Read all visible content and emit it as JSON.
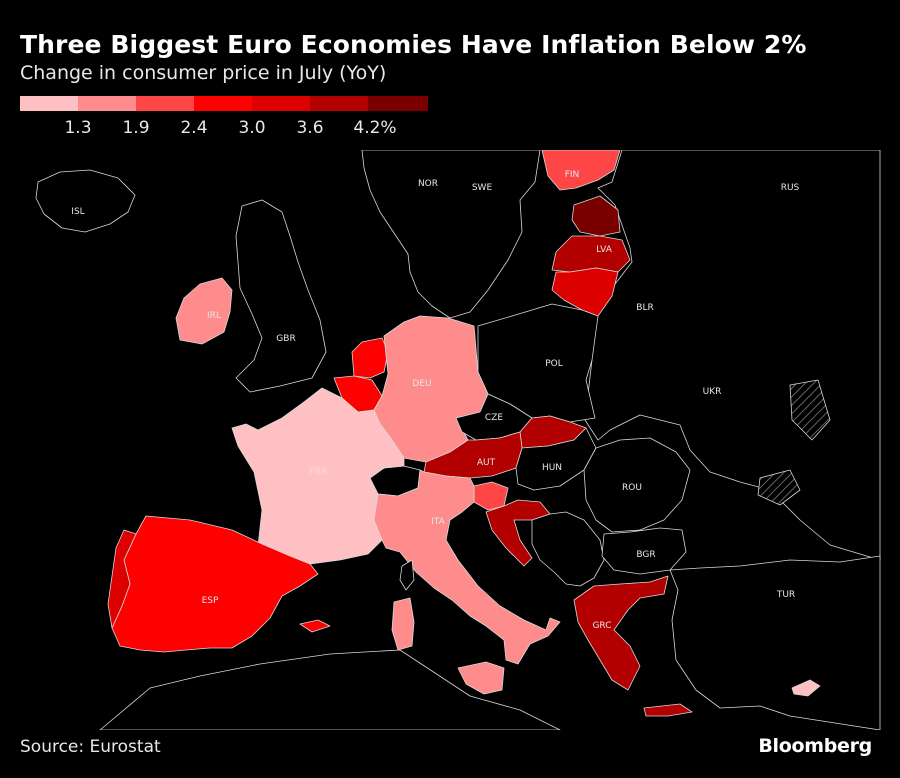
{
  "title": "Three Biggest Euro Economies Have Inflation Below 2%",
  "subtitle": "Change in consumer price in July (YoY)",
  "legend": {
    "colors": [
      "#ffc0c4",
      "#ff8c8c",
      "#ff4646",
      "#ff0000",
      "#dd0000",
      "#b20000",
      "#7a0000"
    ],
    "ticks": [
      "1.3",
      "1.9",
      "2.4",
      "3.0",
      "3.6",
      "4.2%"
    ]
  },
  "countries": {
    "isl": "ISL",
    "nor": "NOR",
    "swe": "SWE",
    "fin": "FIN",
    "rus": "RUS",
    "lva": "LVA",
    "irl": "IRL",
    "gbr": "GBR",
    "blr": "BLR",
    "pol": "POL",
    "deu": "DEU",
    "ukr": "UKR",
    "cze": "CZE",
    "aut": "AUT",
    "hun": "HUN",
    "fra": "FRA",
    "rou": "ROU",
    "ita": "ITA",
    "bgr": "BGR",
    "esp": "ESP",
    "tur": "TUR",
    "grc": "GRC"
  },
  "source": "Source: Eurostat",
  "brand": "Bloomberg"
}
